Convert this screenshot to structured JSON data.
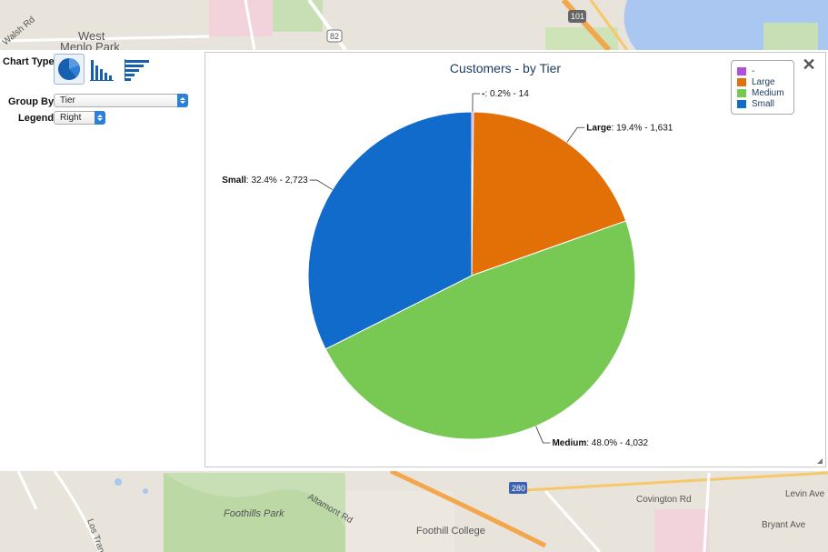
{
  "map": {
    "labels": [
      "West",
      "Menlo Park",
      "Walsh Rd",
      "82",
      "101",
      "Foothills Park",
      "Altamont Rd",
      "Foothill College",
      "280",
      "Covington Rd",
      "Levin Ave",
      "Bryant Ave",
      "Los Trancos"
    ]
  },
  "controls": {
    "chart_type_label": "Chart Type",
    "group_by_label": "Group By",
    "group_by_value": "Tier",
    "legend_label": "Legend",
    "legend_value": "Right",
    "chart_types": [
      {
        "name": "pie",
        "icon": "pie-chart-icon",
        "active": true
      },
      {
        "name": "column",
        "icon": "column-chart-icon",
        "active": false
      },
      {
        "name": "bar",
        "icon": "bar-chart-icon",
        "active": false
      }
    ]
  },
  "chart_data": {
    "type": "pie",
    "title": "Customers - by Tier",
    "slices": [
      {
        "label": "-",
        "percent": "0.2%",
        "value": 14,
        "value_text": "14",
        "color": "#b24ed8"
      },
      {
        "label": "Large",
        "percent": "19.4%",
        "value": 1631,
        "value_text": "1,631",
        "color": "#e36f07"
      },
      {
        "label": "Medium",
        "percent": "48.0%",
        "value": 4032,
        "value_text": "4,032",
        "color": "#78c954"
      },
      {
        "label": "Small",
        "percent": "32.4%",
        "value": 2723,
        "value_text": "2,723",
        "color": "#106bca"
      }
    ],
    "legend": {
      "placement": "top-right",
      "entries": [
        "-",
        "Large",
        "Medium",
        "Small"
      ]
    }
  }
}
